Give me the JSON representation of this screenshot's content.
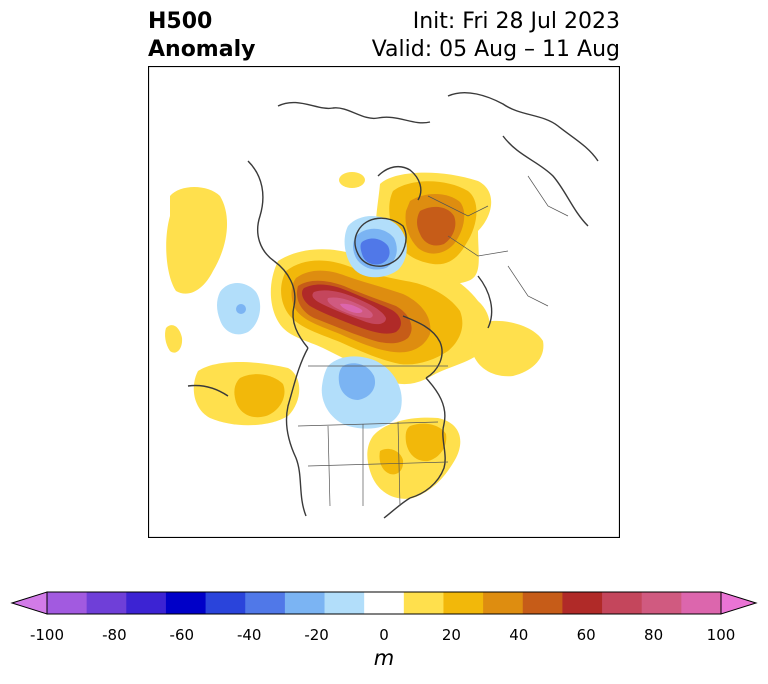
{
  "title": {
    "line1": "H500",
    "line2": "Anomaly",
    "init": "Init: Fri 28 Jul 2023",
    "valid": "Valid: 05 Aug – 11 Aug"
  },
  "colorbar": {
    "label": "m",
    "ticks": [
      "-100",
      "-80",
      "-60",
      "-40",
      "-20",
      "0",
      "20",
      "40",
      "60",
      "80",
      "100"
    ],
    "colors": [
      "#d27be8",
      "#a25ae0",
      "#6f3fd8",
      "#3c23d3",
      "#0000c8",
      "#2a44db",
      "#5078e8",
      "#7bb4f3",
      "#b2defa",
      "#ffffff",
      "#ffe04d",
      "#f2b80a",
      "#de8d10",
      "#c65c18",
      "#b02a28",
      "#c4465c",
      "#d05a80",
      "#dc66ad",
      "#ea74d5"
    ]
  },
  "map_legend_note": {
    "units": "m"
  }
}
